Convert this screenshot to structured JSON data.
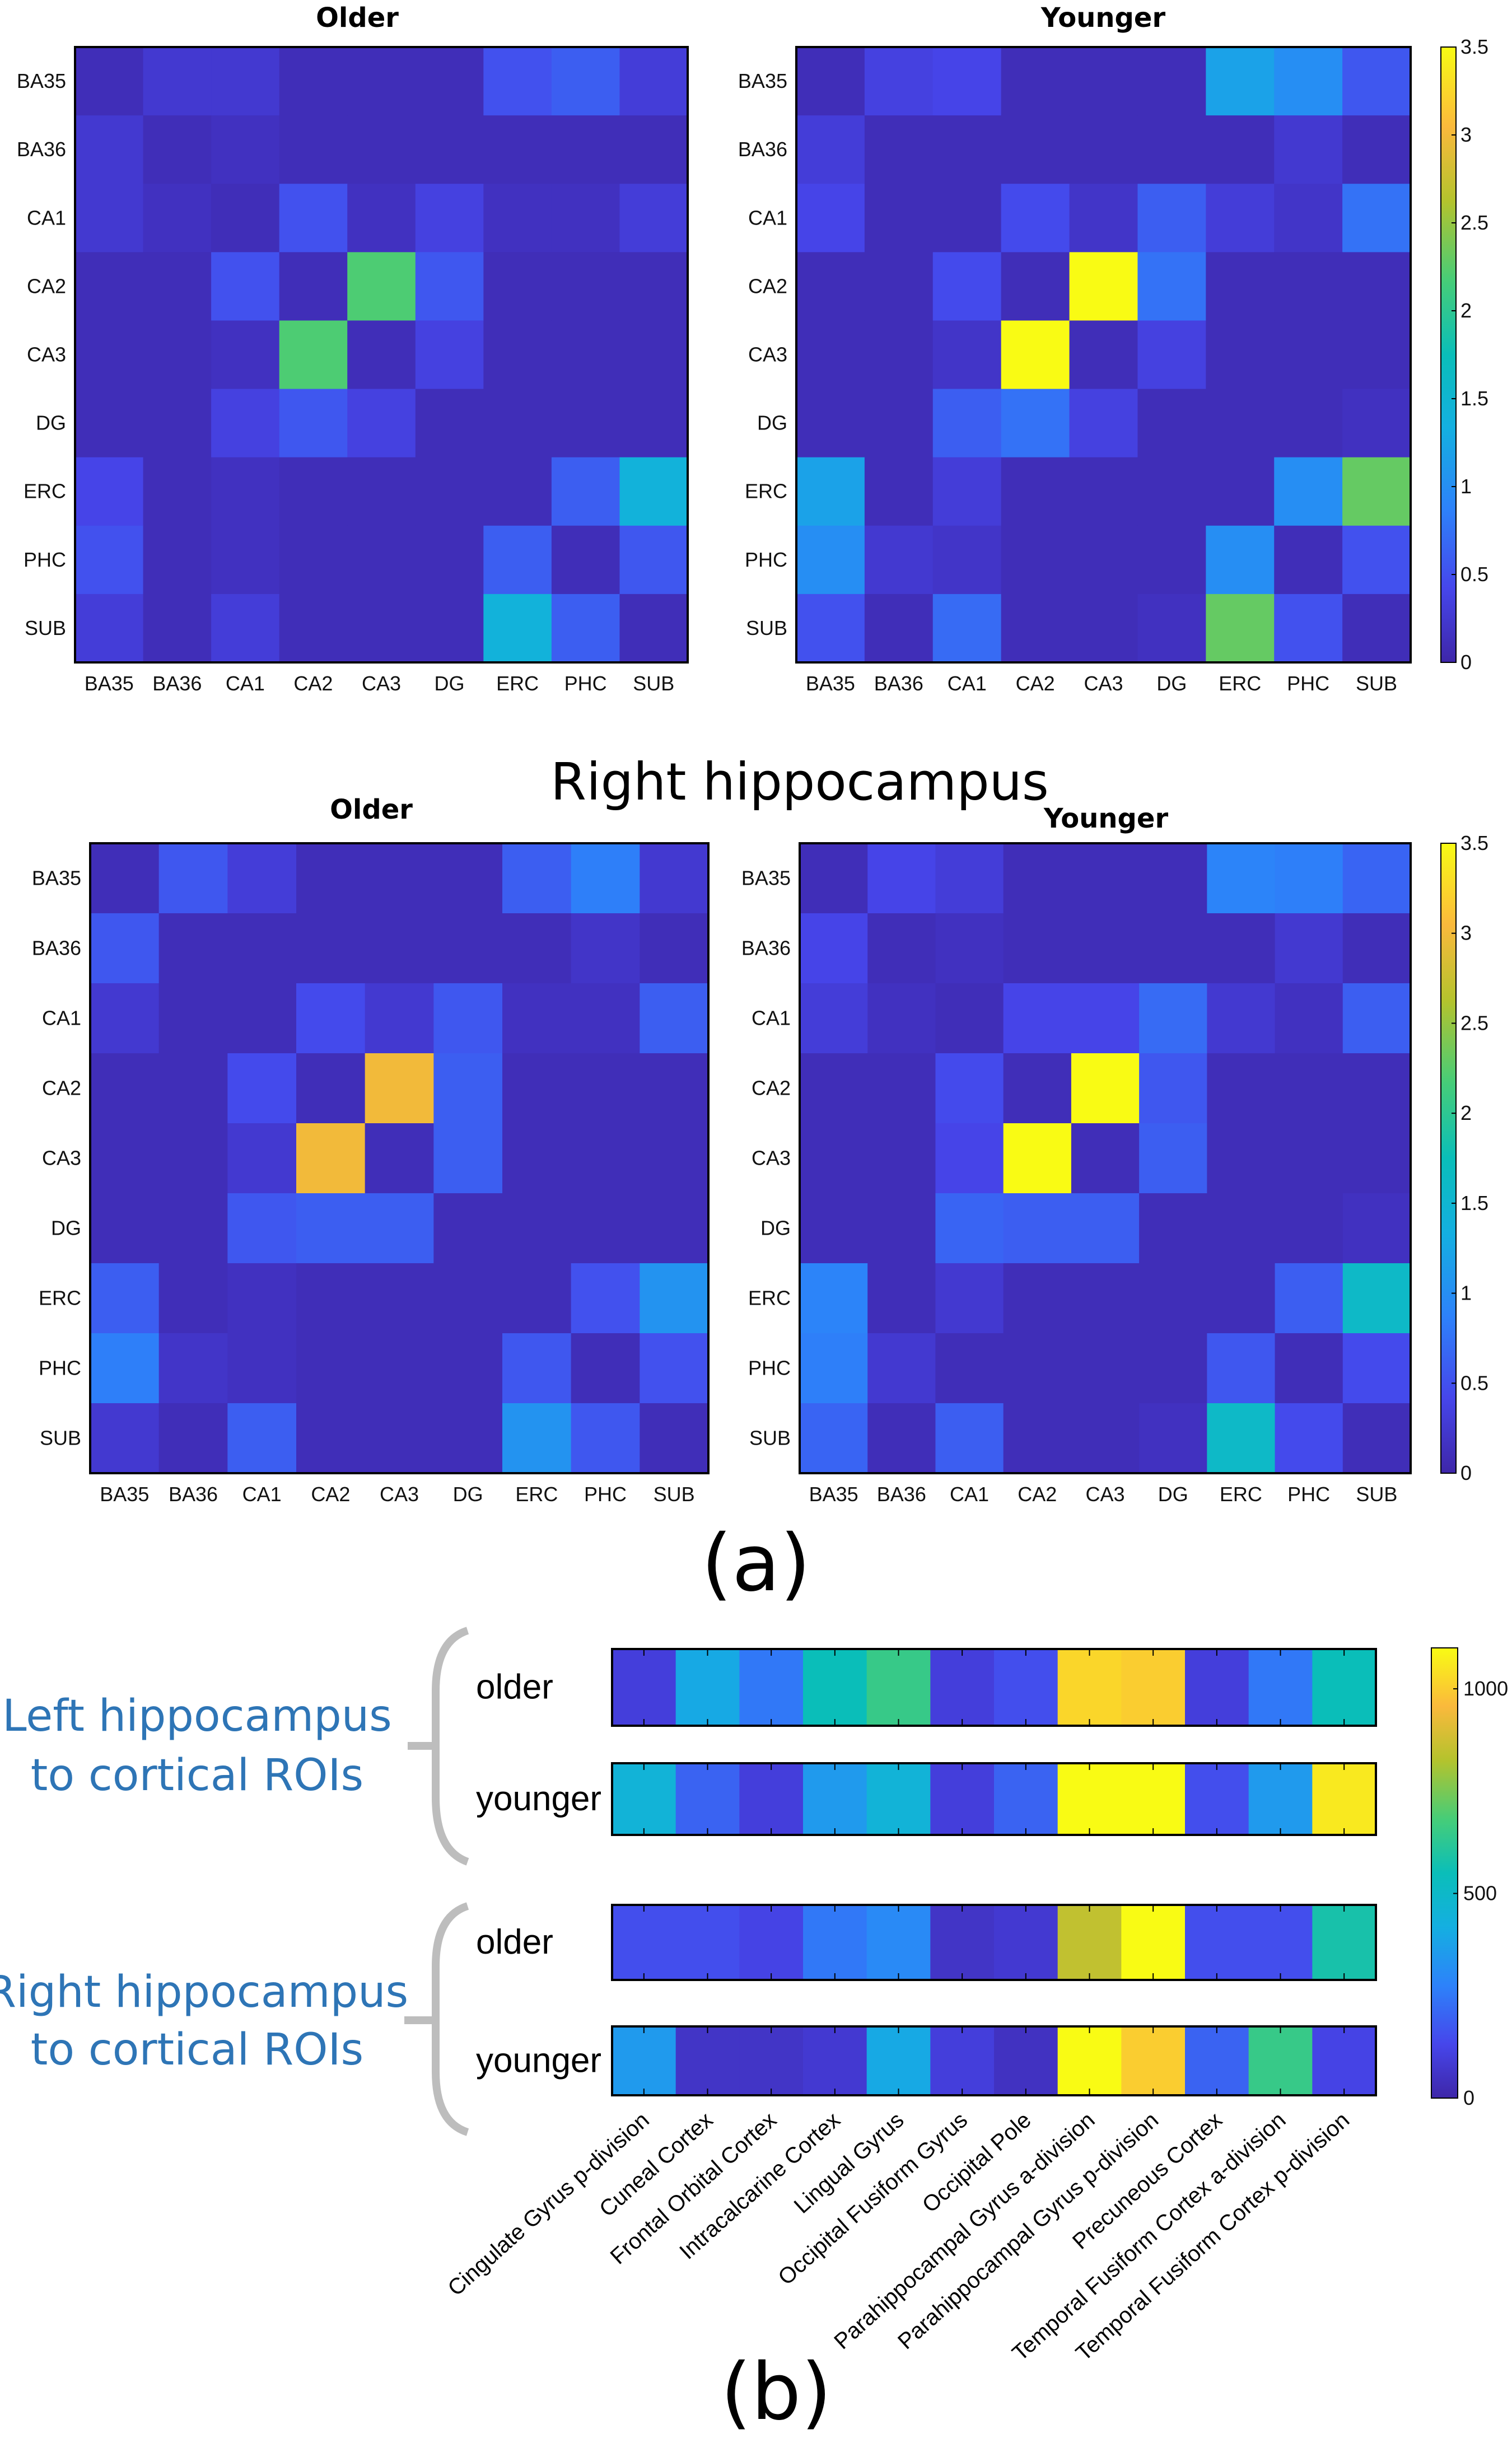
{
  "figure": {
    "right_heading": "Right hippocampus",
    "panel_a": "(a)",
    "panel_b": "(b)"
  },
  "chart_data": [
    {
      "type": "heatmap",
      "title": "Older",
      "row_labels": [
        "BA35",
        "BA36",
        "CA1",
        "CA2",
        "CA3",
        "DG",
        "ERC",
        "PHC",
        "SUB"
      ],
      "col_labels": [
        "BA35",
        "BA36",
        "CA1",
        "CA2",
        "CA3",
        "DG",
        "ERC",
        "PHC",
        "SUB"
      ],
      "values": [
        [
          0.1,
          0.25,
          0.25,
          0.1,
          0.1,
          0.1,
          0.5,
          0.6,
          0.3
        ],
        [
          0.25,
          0.1,
          0.15,
          0.1,
          0.1,
          0.1,
          0.1,
          0.1,
          0.1
        ],
        [
          0.25,
          0.15,
          0.1,
          0.5,
          0.15,
          0.35,
          0.15,
          0.15,
          0.3
        ],
        [
          0.1,
          0.1,
          0.5,
          0.1,
          2.2,
          0.55,
          0.1,
          0.1,
          0.1
        ],
        [
          0.1,
          0.1,
          0.15,
          2.2,
          0.1,
          0.35,
          0.1,
          0.1,
          0.1
        ],
        [
          0.1,
          0.1,
          0.35,
          0.55,
          0.35,
          0.1,
          0.1,
          0.1,
          0.1
        ],
        [
          0.4,
          0.1,
          0.15,
          0.1,
          0.1,
          0.1,
          0.1,
          0.6,
          1.4
        ],
        [
          0.5,
          0.1,
          0.15,
          0.1,
          0.1,
          0.1,
          0.6,
          0.1,
          0.55
        ],
        [
          0.3,
          0.1,
          0.3,
          0.1,
          0.1,
          0.1,
          1.4,
          0.6,
          0.1
        ]
      ],
      "zlim": [
        0,
        3.5
      ],
      "colormap": "parula"
    },
    {
      "type": "heatmap",
      "title": "Younger",
      "row_labels": [
        "BA35",
        "BA36",
        "CA1",
        "CA2",
        "CA3",
        "DG",
        "ERC",
        "PHC",
        "SUB"
      ],
      "col_labels": [
        "BA35",
        "BA36",
        "CA1",
        "CA2",
        "CA3",
        "DG",
        "ERC",
        "PHC",
        "SUB"
      ],
      "values": [
        [
          0.1,
          0.35,
          0.4,
          0.1,
          0.1,
          0.1,
          1.2,
          1.0,
          0.55
        ],
        [
          0.3,
          0.1,
          0.1,
          0.1,
          0.1,
          0.1,
          0.1,
          0.25,
          0.1
        ],
        [
          0.4,
          0.1,
          0.1,
          0.45,
          0.2,
          0.6,
          0.3,
          0.2,
          0.75
        ],
        [
          0.1,
          0.1,
          0.45,
          0.1,
          3.5,
          0.75,
          0.1,
          0.1,
          0.1
        ],
        [
          0.1,
          0.1,
          0.2,
          3.5,
          0.1,
          0.35,
          0.1,
          0.1,
          0.1
        ],
        [
          0.1,
          0.1,
          0.6,
          0.75,
          0.35,
          0.1,
          0.1,
          0.1,
          0.15
        ],
        [
          1.2,
          0.1,
          0.3,
          0.1,
          0.1,
          0.1,
          0.1,
          1.0,
          2.3
        ],
        [
          1.0,
          0.25,
          0.2,
          0.1,
          0.1,
          0.1,
          1.0,
          0.1,
          0.5
        ],
        [
          0.5,
          0.1,
          0.7,
          0.1,
          0.1,
          0.15,
          2.3,
          0.5,
          0.1
        ]
      ],
      "zlim": [
        0,
        3.5
      ],
      "colormap": "parula",
      "colorbar_ticks": [
        "0",
        "0.5",
        "1",
        "1.5",
        "2",
        "2.5",
        "3",
        "3.5"
      ]
    },
    {
      "type": "heatmap",
      "title": "Older",
      "row_labels": [
        "BA35",
        "BA36",
        "CA1",
        "CA2",
        "CA3",
        "DG",
        "ERC",
        "PHC",
        "SUB"
      ],
      "col_labels": [
        "BA35",
        "BA36",
        "CA1",
        "CA2",
        "CA3",
        "DG",
        "ERC",
        "PHC",
        "SUB"
      ],
      "values": [
        [
          0.1,
          0.55,
          0.3,
          0.1,
          0.1,
          0.1,
          0.6,
          0.85,
          0.25
        ],
        [
          0.55,
          0.1,
          0.1,
          0.1,
          0.1,
          0.1,
          0.1,
          0.2,
          0.1
        ],
        [
          0.25,
          0.1,
          0.1,
          0.45,
          0.25,
          0.55,
          0.15,
          0.15,
          0.6
        ],
        [
          0.1,
          0.1,
          0.45,
          0.1,
          3.0,
          0.6,
          0.1,
          0.1,
          0.1
        ],
        [
          0.1,
          0.1,
          0.25,
          3.0,
          0.1,
          0.6,
          0.1,
          0.1,
          0.1
        ],
        [
          0.1,
          0.1,
          0.55,
          0.6,
          0.6,
          0.1,
          0.1,
          0.1,
          0.1
        ],
        [
          0.6,
          0.1,
          0.15,
          0.1,
          0.1,
          0.1,
          0.1,
          0.5,
          1.05
        ],
        [
          0.85,
          0.2,
          0.15,
          0.1,
          0.1,
          0.1,
          0.55,
          0.1,
          0.5
        ],
        [
          0.25,
          0.1,
          0.6,
          0.1,
          0.1,
          0.1,
          1.05,
          0.55,
          0.1
        ]
      ],
      "zlim": [
        0,
        3.5
      ],
      "colormap": "parula"
    },
    {
      "type": "heatmap",
      "title": "Younger",
      "row_labels": [
        "BA35",
        "BA36",
        "CA1",
        "CA2",
        "CA3",
        "DG",
        "ERC",
        "PHC",
        "SUB"
      ],
      "col_labels": [
        "BA35",
        "BA36",
        "CA1",
        "CA2",
        "CA3",
        "DG",
        "ERC",
        "PHC",
        "SUB"
      ],
      "values": [
        [
          0.1,
          0.4,
          0.3,
          0.1,
          0.1,
          0.1,
          0.9,
          0.85,
          0.65
        ],
        [
          0.4,
          0.1,
          0.15,
          0.1,
          0.1,
          0.1,
          0.1,
          0.25,
          0.1
        ],
        [
          0.3,
          0.15,
          0.1,
          0.4,
          0.4,
          0.7,
          0.25,
          0.15,
          0.6
        ],
        [
          0.1,
          0.1,
          0.45,
          0.1,
          3.5,
          0.55,
          0.1,
          0.1,
          0.1
        ],
        [
          0.1,
          0.1,
          0.4,
          3.5,
          0.1,
          0.6,
          0.1,
          0.1,
          0.1
        ],
        [
          0.1,
          0.1,
          0.65,
          0.6,
          0.6,
          0.1,
          0.1,
          0.1,
          0.15
        ],
        [
          0.9,
          0.1,
          0.25,
          0.1,
          0.1,
          0.1,
          0.1,
          0.6,
          1.6
        ],
        [
          0.85,
          0.25,
          0.1,
          0.1,
          0.1,
          0.1,
          0.55,
          0.1,
          0.45
        ],
        [
          0.65,
          0.1,
          0.6,
          0.1,
          0.1,
          0.15,
          1.6,
          0.45,
          0.1
        ]
      ],
      "zlim": [
        0,
        3.5
      ],
      "colormap": "parula",
      "colorbar_ticks": [
        "0",
        "0.5",
        "1",
        "1.5",
        "2",
        "2.5",
        "3",
        "3.5"
      ]
    },
    {
      "type": "heatmap",
      "col_labels": [
        "Cingulate Gyrus p-division",
        "Cuneal Cortex",
        "Frontal Orbital Cortex",
        "Intracalcarine Cortex",
        "Lingual Gyrus",
        "Occipital Fusiform Gyrus",
        "Occipital Pole",
        "Parahippocampal Gyrus a-division",
        "Parahippocampal Gyrus p-division",
        "Precuneous Cortex",
        "Temporal Fusiform Cortex a-division",
        "Temporal Fusiform Cortex p-division"
      ],
      "groups": [
        {
          "label_lines": [
            "Left hippocampus",
            "to cortical ROIs"
          ],
          "rows": [
            {
              "name": "older",
              "values": [
                100,
                400,
                250,
                550,
                650,
                100,
                150,
                1020,
                1000,
                100,
                250,
                550
              ]
            },
            {
              "name": "younger",
              "values": [
                450,
                200,
                100,
                350,
                450,
                100,
                200,
                1100,
                1100,
                150,
                350,
                1060
              ]
            }
          ]
        },
        {
          "label_lines": [
            "Right hippocampus",
            "to cortical ROIs"
          ],
          "rows": [
            {
              "name": "older",
              "values": [
                150,
                150,
                120,
                250,
                300,
                60,
                80,
                850,
                1100,
                150,
                150,
                580
              ]
            },
            {
              "name": "younger",
              "values": [
                350,
                60,
                60,
                80,
                400,
                100,
                50,
                1100,
                1000,
                200,
                650,
                120
              ]
            }
          ]
        }
      ],
      "zlim": [
        0,
        1100
      ],
      "colormap": "parula",
      "colorbar_ticks": [
        "0",
        "500",
        "1000"
      ]
    }
  ]
}
